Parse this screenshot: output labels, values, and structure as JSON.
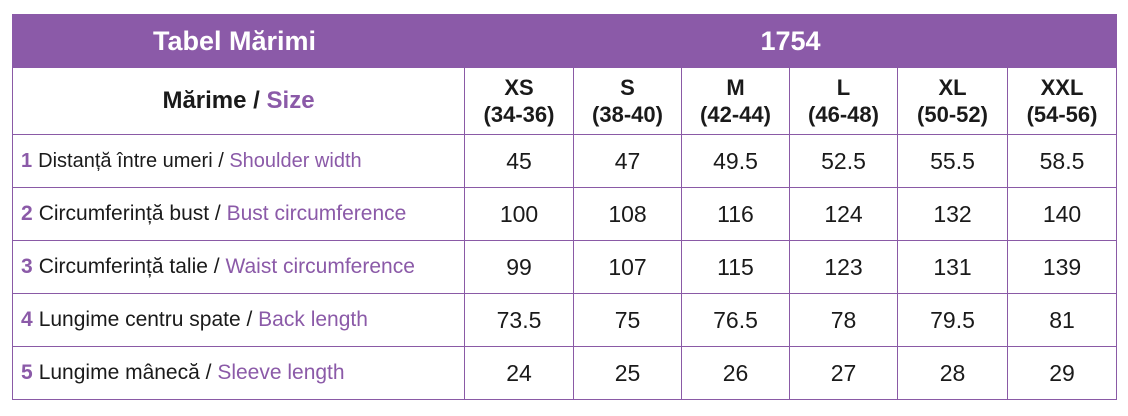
{
  "title": "Tabel Mărimi",
  "model_code": "1754",
  "header": {
    "label_ro": "Mărime",
    "separator": " / ",
    "label_en": "Size"
  },
  "sizes": [
    {
      "name": "XS",
      "range": "(34-36)"
    },
    {
      "name": "S",
      "range": "(38-40)"
    },
    {
      "name": "M",
      "range": "(42-44)"
    },
    {
      "name": "L",
      "range": "(46-48)"
    },
    {
      "name": "XL",
      "range": "(50-52)"
    },
    {
      "name": "XXL",
      "range": "(54-56)"
    }
  ],
  "rows": [
    {
      "num": "1",
      "ro": "Distanță între umeri",
      "sep": " / ",
      "en": "Shoulder width",
      "values": [
        "45",
        "47",
        "49.5",
        "52.5",
        "55.5",
        "58.5"
      ]
    },
    {
      "num": "2",
      "ro": "Circumferință bust",
      "sep": " / ",
      "en": "Bust circumference",
      "values": [
        "100",
        "108",
        "116",
        "124",
        "132",
        "140"
      ]
    },
    {
      "num": "3",
      "ro": "Circumferință talie",
      "sep": " / ",
      "en": "Waist circumference",
      "values": [
        "99",
        "107",
        "115",
        "123",
        "131",
        "139"
      ]
    },
    {
      "num": "4",
      "ro": "Lungime centru spate",
      "sep": " / ",
      "en": "Back length",
      "values": [
        "73.5",
        "75",
        "76.5",
        "78",
        "79.5",
        "81"
      ]
    },
    {
      "num": "5",
      "ro": "Lungime mânecă",
      "sep": " / ",
      "en": "Sleeve length",
      "values": [
        "24",
        "25",
        "26",
        "27",
        "28",
        "29"
      ]
    }
  ],
  "colors": {
    "accent": "#8b5aa8",
    "border": "#8a5aa6",
    "text": "#1a1a1a"
  }
}
